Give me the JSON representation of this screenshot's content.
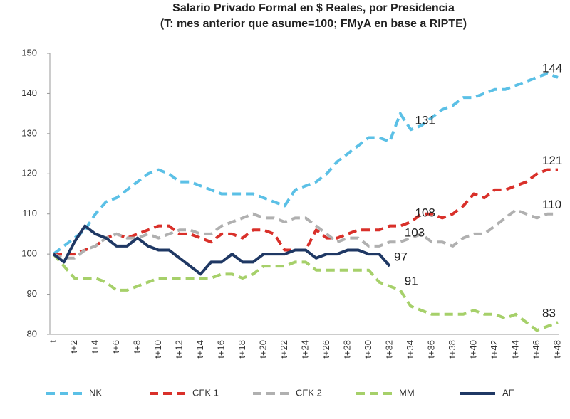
{
  "chart_data": {
    "type": "line",
    "title": "Salario Privado Formal en $ Reales, por Presidencia",
    "subtitle": "(T: mes anterior que asume=100; FMyA en base a RIPTE)",
    "categories": [
      "t",
      null,
      "t+2",
      null,
      "t+4",
      null,
      "t+6",
      null,
      "t+8",
      null,
      "t+10",
      null,
      "t+12",
      null,
      "t+14",
      null,
      "t+16",
      null,
      "t+18",
      null,
      "t+20",
      null,
      "t+22",
      null,
      "t+24",
      null,
      "t+26",
      null,
      "t+28",
      null,
      "t+30",
      null,
      "t+32",
      null,
      "t+34",
      null,
      "t+36",
      null,
      "t+38",
      null,
      "t+40",
      null,
      "t+42",
      null,
      "t+44",
      null,
      "t+46",
      null,
      "t+48"
    ],
    "ylim": [
      80,
      150
    ],
    "yticks": [
      80,
      90,
      100,
      110,
      120,
      130,
      140,
      150
    ],
    "grid": false,
    "legend": "bottom",
    "series": [
      {
        "name": "NK",
        "color": "#5bc0e6",
        "dashed": true,
        "values": [
          100,
          102,
          104,
          106,
          110,
          113,
          114,
          116,
          118,
          120,
          121,
          120,
          118,
          118,
          117,
          116,
          115,
          115,
          115,
          115,
          114,
          113,
          112,
          116,
          117,
          118,
          120,
          123,
          125,
          127,
          129,
          129,
          128,
          135,
          131,
          132,
          134,
          136,
          137,
          139,
          139,
          140,
          141,
          141,
          142,
          143,
          144,
          145,
          144
        ]
      },
      {
        "name": "CFK 1",
        "color": "#d9302a",
        "dashed": true,
        "values": [
          100,
          100,
          100,
          101,
          102,
          104,
          105,
          104,
          105,
          106,
          107,
          107,
          105,
          105,
          104,
          103,
          105,
          105,
          104,
          106,
          106,
          105,
          101,
          101,
          101,
          106,
          104,
          104,
          105,
          106,
          106,
          106,
          107,
          107,
          108,
          110,
          110,
          109,
          110,
          112,
          115,
          114,
          116,
          116,
          117,
          118,
          120,
          121,
          121
        ]
      },
      {
        "name": "CFK 2",
        "color": "#b0b0b0",
        "dashed": true,
        "values": [
          100,
          99,
          99,
          101,
          102,
          104,
          105,
          104,
          104,
          105,
          104,
          105,
          106,
          106,
          105,
          105,
          107,
          108,
          109,
          110,
          109,
          109,
          108,
          109,
          109,
          107,
          105,
          103,
          104,
          104,
          102,
          102,
          103,
          103,
          104,
          105,
          103,
          103,
          102,
          104,
          105,
          105,
          107,
          109,
          111,
          110,
          109,
          110,
          110
        ]
      },
      {
        "name": "MM",
        "color": "#a6d06a",
        "dashed": true,
        "values": [
          100,
          97,
          94,
          94,
          94,
          93,
          91,
          91,
          92,
          93,
          94,
          94,
          94,
          94,
          94,
          94,
          95,
          95,
          94,
          95,
          97,
          97,
          97,
          98,
          98,
          96,
          96,
          96,
          96,
          96,
          96,
          93,
          92,
          91,
          87,
          86,
          85,
          85,
          85,
          85,
          86,
          85,
          85,
          84,
          85,
          83,
          81,
          82,
          83
        ]
      },
      {
        "name": "AF",
        "color": "#1f3864",
        "dashed": false,
        "values": [
          100,
          98,
          103,
          107,
          105,
          104,
          102,
          102,
          104,
          102,
          101,
          101,
          99,
          97,
          95,
          98,
          98,
          100,
          98,
          98,
          100,
          100,
          100,
          101,
          101,
          99,
          100,
          100,
          101,
          101,
          100,
          100,
          97,
          null,
          null,
          null,
          null,
          null,
          null,
          null,
          null,
          null,
          null,
          null,
          null,
          null,
          null,
          null,
          null
        ]
      }
    ],
    "annotations": [
      {
        "series": 0,
        "index": 48,
        "label": "144"
      },
      {
        "series": 0,
        "index": 34,
        "label": "131"
      },
      {
        "series": 1,
        "index": 48,
        "label": "121"
      },
      {
        "series": 1,
        "index": 34,
        "label": "108"
      },
      {
        "series": 2,
        "index": 48,
        "label": "110"
      },
      {
        "series": 2,
        "index": 33,
        "label": "103"
      },
      {
        "series": 4,
        "index": 32,
        "label": "97"
      },
      {
        "series": 3,
        "index": 33,
        "label": "91"
      },
      {
        "series": 3,
        "index": 48,
        "label": "83"
      }
    ]
  }
}
